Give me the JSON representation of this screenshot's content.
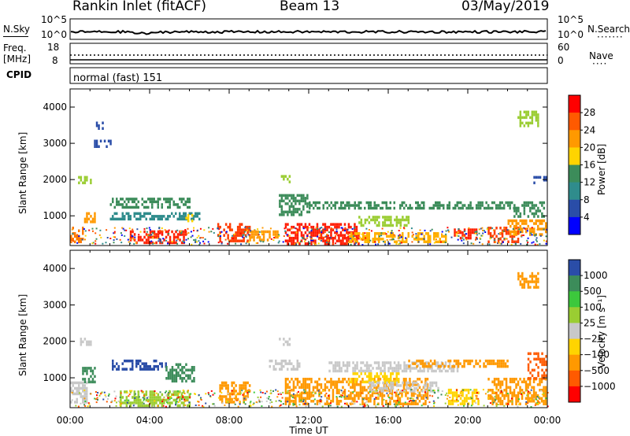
{
  "header": {
    "station": "Rankin Inlet (fitACF)",
    "beam": "Beam 13",
    "date": "03/May/2019"
  },
  "strips": {
    "nsky_label": "N.Sky",
    "nsky_ticks": [
      "10^5",
      "10^0"
    ],
    "nsearch_label": "N.Search",
    "nsearch_ticks": [
      "10^5",
      "10^0"
    ],
    "freq_label_1": "Freq.",
    "freq_label_2": "[MHz]",
    "freq_ticks": [
      "18",
      "8"
    ],
    "nave_label": "Nave",
    "nave_ticks": [
      "60",
      "0"
    ],
    "cpid_label": "CPID",
    "cpid_value": "normal (fast) 151"
  },
  "chart_data": [
    {
      "type": "heatmap",
      "name": "power-panel",
      "ylabel": "Slant Range [km]",
      "yticks": [
        "4000",
        "3000",
        "2000",
        "1000"
      ],
      "ylim": [
        180,
        4500
      ],
      "xlim": [
        0,
        24
      ],
      "colorbar_label": "Power [dB]",
      "colorbar_ticks": [
        "28",
        "24",
        "20",
        "16",
        "12",
        "8",
        "4"
      ],
      "colorbar_colors": [
        "#ff0000",
        "#ff5a00",
        "#ff9900",
        "#ffd400",
        "#3c8c5a",
        "#2f8c8c",
        "#2a4da8",
        "#0000ff"
      ],
      "regions": [
        {
          "t0": 0.0,
          "t1": 0.6,
          "r0": 300,
          "r1": 700,
          "c": "#ff7a00"
        },
        {
          "t0": 0.7,
          "t1": 1.2,
          "r0": 800,
          "r1": 1100,
          "c": "#ff9900"
        },
        {
          "t0": 0.4,
          "t1": 1.0,
          "r0": 1900,
          "r1": 2100,
          "c": "#9acd32"
        },
        {
          "t0": 1.1,
          "t1": 1.6,
          "r0": 3400,
          "r1": 3600,
          "c": "#2a4da8"
        },
        {
          "t0": 1.2,
          "t1": 2.0,
          "r0": 2900,
          "r1": 3100,
          "c": "#2a4da8"
        },
        {
          "t0": 2.0,
          "t1": 6.0,
          "r0": 1200,
          "r1": 1500,
          "c": "#3c8c5a"
        },
        {
          "t0": 2.0,
          "t1": 6.5,
          "r0": 900,
          "r1": 1100,
          "c": "#2f8c8c"
        },
        {
          "t0": 3.0,
          "t1": 5.8,
          "r0": 250,
          "r1": 600,
          "c": "#ff2000"
        },
        {
          "t0": 5.8,
          "t1": 6.1,
          "r0": 850,
          "r1": 1050,
          "c": "#ffd400"
        },
        {
          "t0": 7.4,
          "t1": 9.0,
          "r0": 300,
          "r1": 800,
          "c": "#ff3a00"
        },
        {
          "t0": 9.0,
          "t1": 10.5,
          "r0": 300,
          "r1": 600,
          "c": "#ff9900"
        },
        {
          "t0": 10.5,
          "t1": 12.0,
          "r0": 1000,
          "r1": 1600,
          "c": "#3c8c5a"
        },
        {
          "t0": 10.6,
          "t1": 11.0,
          "r0": 1900,
          "r1": 2200,
          "c": "#9acd32"
        },
        {
          "t0": 10.8,
          "t1": 14.5,
          "r0": 250,
          "r1": 800,
          "c": "#ff1a00"
        },
        {
          "t0": 14.5,
          "t1": 17.0,
          "r0": 700,
          "r1": 1000,
          "c": "#9acd32"
        },
        {
          "t0": 12.0,
          "t1": 19.5,
          "r0": 1200,
          "r1": 1400,
          "c": "#3c8c5a"
        },
        {
          "t0": 14.0,
          "t1": 19.0,
          "r0": 250,
          "r1": 550,
          "c": "#ffb000"
        },
        {
          "t0": 19.3,
          "t1": 20.4,
          "r0": 350,
          "r1": 650,
          "c": "#ff2000"
        },
        {
          "t0": 19.5,
          "t1": 22.5,
          "r0": 1200,
          "r1": 1400,
          "c": "#3c8c5a"
        },
        {
          "t0": 21.0,
          "t1": 22.5,
          "r0": 300,
          "r1": 700,
          "c": "#ff3a00"
        },
        {
          "t0": 22.0,
          "t1": 23.9,
          "r0": 500,
          "r1": 900,
          "c": "#ff9900"
        },
        {
          "t0": 22.3,
          "t1": 23.8,
          "r0": 1000,
          "r1": 1400,
          "c": "#3c8c5a"
        },
        {
          "t0": 22.5,
          "t1": 23.5,
          "r0": 3500,
          "r1": 3900,
          "c": "#9acd32"
        },
        {
          "t0": 23.3,
          "t1": 23.9,
          "r0": 1900,
          "r1": 2100,
          "c": "#2a4da8"
        }
      ]
    },
    {
      "type": "heatmap",
      "name": "velocity-panel",
      "ylabel": "Slant Range [km]",
      "yticks": [
        "4000",
        "3000",
        "2000",
        "1000"
      ],
      "ylim": [
        180,
        4500
      ],
      "xlim": [
        0,
        24
      ],
      "xticks": [
        "00:00",
        "04:00",
        "08:00",
        "12:00",
        "16:00",
        "20:00",
        "00:00"
      ],
      "xlabel": "Time UT",
      "colorbar_label": "Velocity [m s⁻¹]",
      "colorbar_ticks": [
        "1000",
        "500",
        "100",
        "25",
        "−25",
        "−100",
        "−500",
        "−1000"
      ],
      "colorbar_colors": [
        "#2a4da8",
        "#3c8c5a",
        "#3cc83c",
        "#9acd32",
        "#c8c8c8",
        "#ffd400",
        "#ff9900",
        "#ff5a00",
        "#ff0000"
      ],
      "regions": [
        {
          "t0": 0.0,
          "t1": 0.8,
          "r0": 300,
          "r1": 900,
          "c": "#c8c8c8"
        },
        {
          "t0": 0.6,
          "t1": 1.2,
          "r0": 900,
          "r1": 1300,
          "c": "#3c8c5a"
        },
        {
          "t0": 0.4,
          "t1": 1.0,
          "r0": 1900,
          "r1": 2100,
          "c": "#c8c8c8"
        },
        {
          "t0": 2.1,
          "t1": 4.8,
          "r0": 1200,
          "r1": 1500,
          "c": "#2a4da8"
        },
        {
          "t0": 4.8,
          "t1": 6.2,
          "r0": 900,
          "r1": 1400,
          "c": "#3c8c5a"
        },
        {
          "t0": 2.5,
          "t1": 6.0,
          "r0": 250,
          "r1": 650,
          "c": "#9acd32"
        },
        {
          "t0": 7.5,
          "t1": 9.0,
          "r0": 300,
          "r1": 900,
          "c": "#ff9900"
        },
        {
          "t0": 10.0,
          "t1": 11.5,
          "r0": 1200,
          "r1": 1500,
          "c": "#c8c8c8"
        },
        {
          "t0": 10.5,
          "t1": 11.0,
          "r0": 1900,
          "r1": 2100,
          "c": "#c8c8c8"
        },
        {
          "t0": 10.8,
          "t1": 18.0,
          "r0": 250,
          "r1": 1000,
          "c": "#ff9900"
        },
        {
          "t0": 13.0,
          "t1": 19.5,
          "r0": 1200,
          "r1": 1450,
          "c": "#c8c8c8"
        },
        {
          "t0": 14.0,
          "t1": 16.5,
          "r0": 900,
          "r1": 1150,
          "c": "#ffd400"
        },
        {
          "t0": 15.0,
          "t1": 18.5,
          "r0": 600,
          "r1": 900,
          "c": "#c8c8c8"
        },
        {
          "t0": 17.0,
          "t1": 22.0,
          "r0": 1300,
          "r1": 1500,
          "c": "#ff9900"
        },
        {
          "t0": 19.0,
          "t1": 20.5,
          "r0": 300,
          "r1": 700,
          "c": "#ffd400"
        },
        {
          "t0": 21.0,
          "t1": 23.9,
          "r0": 300,
          "r1": 1000,
          "c": "#ff9900"
        },
        {
          "t0": 23.0,
          "t1": 23.9,
          "r0": 1000,
          "r1": 1700,
          "c": "#ff5a00"
        },
        {
          "t0": 22.5,
          "t1": 23.5,
          "r0": 3500,
          "r1": 3900,
          "c": "#ff9900"
        }
      ]
    }
  ]
}
